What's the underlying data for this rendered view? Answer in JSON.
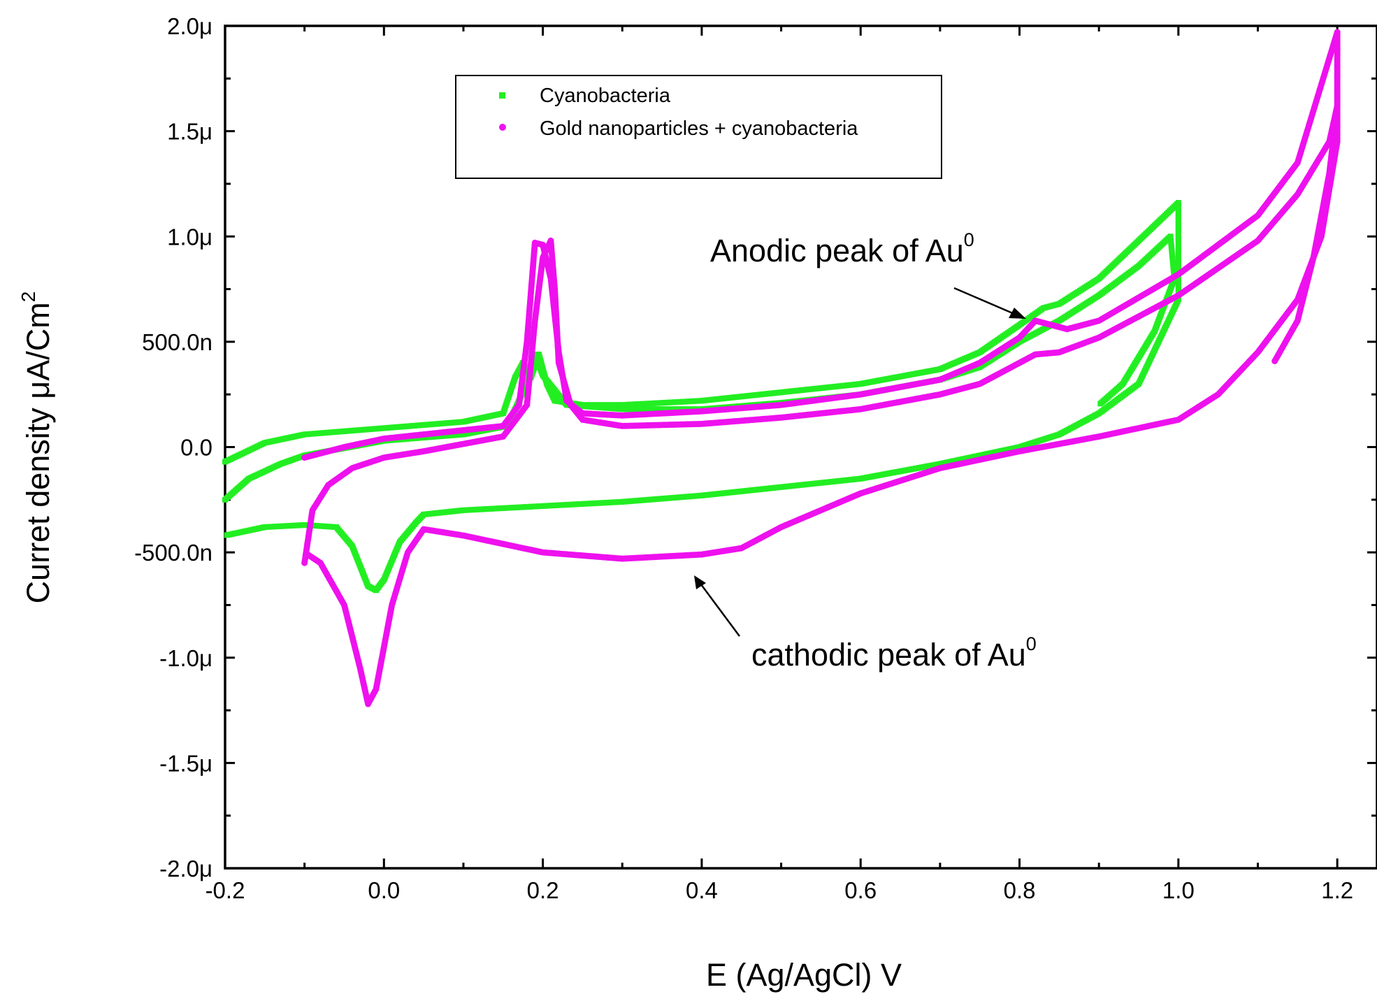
{
  "chart_data": {
    "type": "scatter",
    "title": "",
    "xlabel": "E (Ag/AgCl) V",
    "ylabel": "Curret density μA/Cm",
    "ylabel_sup": "2",
    "xlim": [
      -0.2,
      1.25
    ],
    "ylim": [
      -2e-06,
      2e-06
    ],
    "x_ticks": [
      -0.2,
      0.0,
      0.2,
      0.4,
      0.6,
      0.8,
      1.0,
      1.2
    ],
    "x_tick_labels": [
      "-0.2",
      "0.0",
      "0.2",
      "0.4",
      "0.6",
      "0.8",
      "1.0",
      "1.2"
    ],
    "y_ticks": [
      -2e-06,
      -1.5e-06,
      -1e-06,
      -5e-07,
      0,
      5e-07,
      1e-06,
      1.5e-06,
      2e-06
    ],
    "y_tick_labels": [
      "-2.0μ",
      "-1.5μ",
      "-1.0μ",
      "-500.0n",
      "0.0",
      "500.0n",
      "1.0μ",
      "1.5μ",
      "2.0μ"
    ],
    "legend": {
      "position": "top-center",
      "entries": [
        "Cyanobacteria",
        "Gold nanoparticles + cyanobacteria"
      ]
    },
    "annotations": [
      {
        "text": "Anodic peak of Au",
        "sup": "0",
        "x": 0.82,
        "y": 5.9e-07
      },
      {
        "text": "cathodic peak of Au",
        "sup": "0",
        "x": 0.4,
        "y": -6e-07
      }
    ],
    "series": [
      {
        "name": "Cyanobacteria",
        "color": "#22ee22",
        "marker": "square",
        "loops": [
          [
            [
              -0.2,
              -0.07
            ],
            [
              -0.15,
              0.02
            ],
            [
              -0.1,
              0.06
            ],
            [
              0.0,
              0.09
            ],
            [
              0.1,
              0.12
            ],
            [
              0.15,
              0.16
            ],
            [
              0.165,
              0.33
            ],
            [
              0.175,
              0.4
            ],
            [
              0.185,
              0.33
            ],
            [
              0.195,
              0.44
            ],
            [
              0.205,
              0.3
            ],
            [
              0.215,
              0.22
            ],
            [
              0.25,
              0.2
            ],
            [
              0.3,
              0.2
            ],
            [
              0.4,
              0.22
            ],
            [
              0.5,
              0.26
            ],
            [
              0.6,
              0.3
            ],
            [
              0.7,
              0.37
            ],
            [
              0.75,
              0.45
            ],
            [
              0.8,
              0.58
            ],
            [
              0.83,
              0.66
            ],
            [
              0.85,
              0.68
            ],
            [
              0.9,
              0.8
            ],
            [
              0.95,
              0.98
            ],
            [
              1.0,
              1.16
            ],
            [
              1.0,
              0.7
            ],
            [
              0.95,
              0.3
            ],
            [
              0.9,
              0.16
            ],
            [
              0.85,
              0.06
            ],
            [
              0.8,
              0.0
            ],
            [
              0.7,
              -0.08
            ],
            [
              0.6,
              -0.15
            ],
            [
              0.5,
              -0.19
            ],
            [
              0.4,
              -0.23
            ],
            [
              0.3,
              -0.26
            ],
            [
              0.2,
              -0.28
            ],
            [
              0.1,
              -0.3
            ],
            [
              0.05,
              -0.32
            ],
            [
              0.04,
              -0.36
            ],
            [
              0.02,
              -0.45
            ],
            [
              0.0,
              -0.63
            ],
            [
              -0.01,
              -0.68
            ],
            [
              -0.02,
              -0.66
            ],
            [
              -0.04,
              -0.47
            ],
            [
              -0.06,
              -0.38
            ],
            [
              -0.1,
              -0.37
            ],
            [
              -0.15,
              -0.38
            ],
            [
              -0.2,
              -0.42
            ]
          ],
          [
            [
              -0.2,
              -0.25
            ],
            [
              -0.17,
              -0.15
            ],
            [
              -0.13,
              -0.08
            ],
            [
              -0.1,
              -0.04
            ],
            [
              0.0,
              0.03
            ],
            [
              0.1,
              0.06
            ],
            [
              0.155,
              0.1
            ],
            [
              0.18,
              0.3
            ],
            [
              0.19,
              0.44
            ],
            [
              0.2,
              0.34
            ],
            [
              0.23,
              0.2
            ],
            [
              0.3,
              0.18
            ],
            [
              0.4,
              0.18
            ],
            [
              0.5,
              0.21
            ],
            [
              0.6,
              0.25
            ],
            [
              0.7,
              0.32
            ],
            [
              0.75,
              0.38
            ],
            [
              0.8,
              0.5
            ],
            [
              0.85,
              0.6
            ],
            [
              0.9,
              0.72
            ],
            [
              0.95,
              0.86
            ],
            [
              0.99,
              1.0
            ],
            [
              0.995,
              0.8
            ],
            [
              0.97,
              0.55
            ],
            [
              0.93,
              0.3
            ],
            [
              0.9,
              0.2
            ]
          ]
        ]
      },
      {
        "name": "Gold nanoparticles + cyanobacteria",
        "color": "#ee11ee",
        "marker": "circle",
        "loops": [
          [
            [
              -0.1,
              -0.05
            ],
            [
              -0.05,
              0.0
            ],
            [
              0.0,
              0.04
            ],
            [
              0.05,
              0.06
            ],
            [
              0.1,
              0.08
            ],
            [
              0.15,
              0.1
            ],
            [
              0.17,
              0.2
            ],
            [
              0.18,
              0.5
            ],
            [
              0.19,
              0.97
            ],
            [
              0.2,
              0.96
            ],
            [
              0.21,
              0.8
            ],
            [
              0.22,
              0.45
            ],
            [
              0.23,
              0.22
            ],
            [
              0.25,
              0.16
            ],
            [
              0.3,
              0.15
            ],
            [
              0.4,
              0.17
            ],
            [
              0.5,
              0.2
            ],
            [
              0.6,
              0.25
            ],
            [
              0.7,
              0.32
            ],
            [
              0.75,
              0.4
            ],
            [
              0.8,
              0.52
            ],
            [
              0.82,
              0.6
            ],
            [
              0.86,
              0.56
            ],
            [
              0.9,
              0.6
            ],
            [
              1.0,
              0.82
            ],
            [
              1.1,
              1.1
            ],
            [
              1.15,
              1.35
            ],
            [
              1.2,
              1.97
            ],
            [
              1.2,
              1.45
            ],
            [
              1.18,
              1.0
            ],
            [
              1.15,
              0.7
            ],
            [
              1.1,
              0.45
            ],
            [
              1.05,
              0.25
            ],
            [
              1.0,
              0.13
            ],
            [
              0.9,
              0.05
            ],
            [
              0.8,
              -0.02
            ],
            [
              0.7,
              -0.1
            ],
            [
              0.6,
              -0.22
            ],
            [
              0.5,
              -0.38
            ],
            [
              0.45,
              -0.48
            ],
            [
              0.4,
              -0.51
            ],
            [
              0.3,
              -0.53
            ],
            [
              0.2,
              -0.5
            ],
            [
              0.1,
              -0.42
            ],
            [
              0.05,
              -0.39
            ],
            [
              0.03,
              -0.5
            ],
            [
              0.01,
              -0.75
            ],
            [
              -0.01,
              -1.15
            ],
            [
              -0.02,
              -1.22
            ],
            [
              -0.03,
              -1.05
            ],
            [
              -0.05,
              -0.75
            ],
            [
              -0.08,
              -0.55
            ],
            [
              -0.1,
              -0.5
            ]
          ],
          [
            [
              -0.1,
              -0.55
            ],
            [
              -0.09,
              -0.3
            ],
            [
              -0.07,
              -0.18
            ],
            [
              -0.04,
              -0.1
            ],
            [
              0.0,
              -0.05
            ],
            [
              0.05,
              -0.02
            ],
            [
              0.15,
              0.05
            ],
            [
              0.18,
              0.2
            ],
            [
              0.19,
              0.6
            ],
            [
              0.2,
              0.9
            ],
            [
              0.21,
              0.98
            ],
            [
              0.215,
              0.75
            ],
            [
              0.22,
              0.4
            ],
            [
              0.235,
              0.2
            ],
            [
              0.25,
              0.13
            ],
            [
              0.3,
              0.1
            ],
            [
              0.4,
              0.11
            ],
            [
              0.5,
              0.14
            ],
            [
              0.6,
              0.18
            ],
            [
              0.7,
              0.25
            ],
            [
              0.75,
              0.3
            ],
            [
              0.8,
              0.4
            ],
            [
              0.82,
              0.44
            ],
            [
              0.85,
              0.45
            ],
            [
              0.9,
              0.52
            ],
            [
              1.0,
              0.72
            ],
            [
              1.1,
              0.98
            ],
            [
              1.15,
              1.2
            ],
            [
              1.19,
              1.45
            ],
            [
              1.2,
              1.62
            ],
            [
              1.19,
              1.3
            ],
            [
              1.17,
              0.9
            ],
            [
              1.15,
              0.6
            ],
            [
              1.12,
              0.4
            ]
          ]
        ]
      }
    ]
  }
}
